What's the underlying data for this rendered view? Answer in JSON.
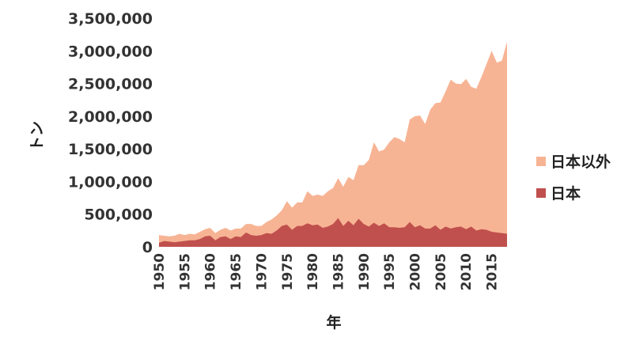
{
  "chart_data": {
    "type": "area",
    "stacked": true,
    "xlabel": "年",
    "ylabel": "トン",
    "xlim": [
      1950,
      2018
    ],
    "ylim": [
      0,
      3500000
    ],
    "y_ticks": [
      "0",
      "500,000",
      "1,000,000",
      "1,500,000",
      "2,000,000",
      "2,500,000",
      "3,000,000",
      "3,500,000"
    ],
    "x_ticks": [
      "1950",
      "1955",
      "1960",
      "1965",
      "1970",
      "1975",
      "1980",
      "1985",
      "1990",
      "1995",
      "2000",
      "2005",
      "2010",
      "2015"
    ],
    "legend_position": "right",
    "grid": false,
    "x": [
      1950,
      1951,
      1952,
      1953,
      1954,
      1955,
      1956,
      1957,
      1958,
      1959,
      1960,
      1961,
      1962,
      1963,
      1964,
      1965,
      1966,
      1967,
      1968,
      1969,
      1970,
      1971,
      1972,
      1973,
      1974,
      1975,
      1976,
      1977,
      1978,
      1979,
      1980,
      1981,
      1982,
      1983,
      1984,
      1985,
      1986,
      1987,
      1988,
      1989,
      1990,
      1991,
      1992,
      1993,
      1994,
      1995,
      1996,
      1997,
      1998,
      1999,
      2000,
      2001,
      2002,
      2003,
      2004,
      2005,
      2006,
      2007,
      2008,
      2009,
      2010,
      2011,
      2012,
      2013,
      2014,
      2015,
      2016,
      2017,
      2018
    ],
    "series": [
      {
        "name": "日本",
        "color": "#c0504d",
        "values": [
          60000,
          90000,
          80000,
          70000,
          80000,
          90000,
          100000,
          100000,
          120000,
          160000,
          170000,
          100000,
          150000,
          160000,
          120000,
          160000,
          150000,
          220000,
          180000,
          170000,
          180000,
          210000,
          200000,
          250000,
          320000,
          340000,
          260000,
          320000,
          320000,
          360000,
          330000,
          340000,
          290000,
          310000,
          350000,
          440000,
          320000,
          400000,
          330000,
          430000,
          350000,
          310000,
          370000,
          320000,
          360000,
          300000,
          300000,
          290000,
          300000,
          380000,
          300000,
          330000,
          280000,
          280000,
          330000,
          260000,
          310000,
          280000,
          300000,
          310000,
          270000,
          310000,
          250000,
          270000,
          260000,
          230000,
          220000,
          210000,
          200000
        ]
      },
      {
        "name": "日本以外",
        "color": "#f7b494",
        "totals": [
          180000,
          170000,
          160000,
          170000,
          200000,
          180000,
          200000,
          190000,
          230000,
          270000,
          290000,
          210000,
          260000,
          290000,
          250000,
          280000,
          280000,
          350000,
          350000,
          320000,
          320000,
          380000,
          420000,
          480000,
          560000,
          700000,
          600000,
          680000,
          680000,
          850000,
          780000,
          800000,
          780000,
          850000,
          900000,
          1050000,
          920000,
          1070000,
          1020000,
          1250000,
          1250000,
          1330000,
          1600000,
          1460000,
          1490000,
          1600000,
          1680000,
          1650000,
          1600000,
          1950000,
          2000000,
          2010000,
          1880000,
          2100000,
          2200000,
          2210000,
          2380000,
          2560000,
          2500000,
          2490000,
          2570000,
          2450000,
          2420000,
          2600000,
          2800000,
          3000000,
          2820000,
          2850000,
          3140000
        ]
      }
    ]
  }
}
